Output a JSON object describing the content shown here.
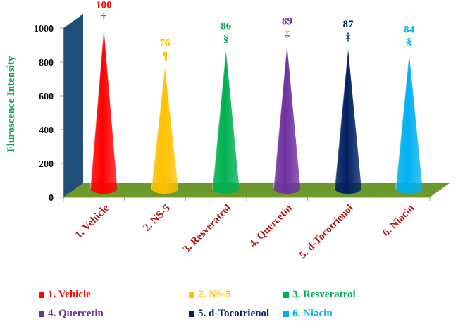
{
  "chart_data": {
    "type": "bar",
    "style": "3d-cone",
    "title": "",
    "ylabel": "Fluroscence Intensity",
    "xlabel": "",
    "ylim": [
      0,
      1000
    ],
    "yticks": [
      0,
      200,
      400,
      600,
      800,
      1000
    ],
    "categories": [
      "1. Vehicle",
      "2. NS-5",
      "3. Resveratrol",
      "4. Quercetin",
      "5. d-Tocotrienol",
      "6. Niacin"
    ],
    "values": [
      960,
      735,
      835,
      865,
      845,
      815
    ],
    "data_labels": [
      "100",
      "76",
      "86",
      "89",
      "87",
      "84"
    ],
    "data_marks": [
      "†",
      "¶",
      "§",
      "‡",
      "‡",
      "§"
    ],
    "colors": [
      "#ff0000",
      "#ffc000",
      "#00b050",
      "#7030a0",
      "#002060",
      "#00b0f0"
    ],
    "label_colors": [
      "#ff0000",
      "#ffc000",
      "#00b050",
      "#7030a0",
      "#002060",
      "#00b0f0"
    ],
    "floor_color": "#6b9a2a",
    "wall_color": "#1f4e79",
    "grid": false,
    "legend_position": "bottom"
  }
}
